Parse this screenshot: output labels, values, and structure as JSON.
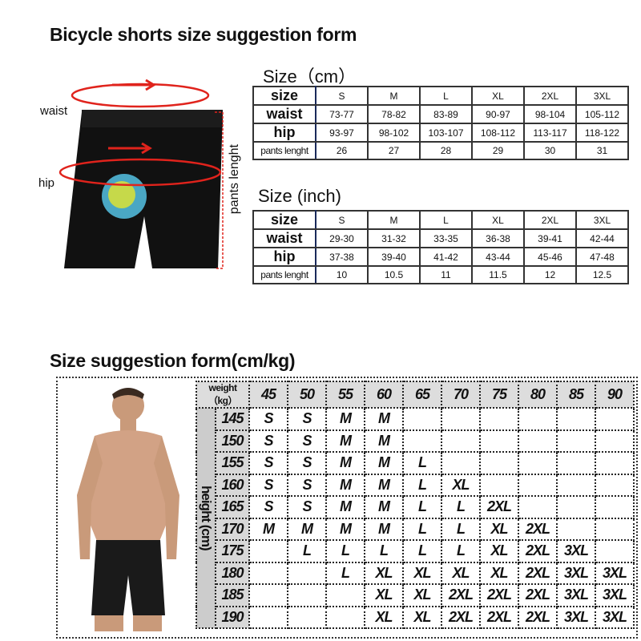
{
  "title": "Bicycle shorts size suggestion form",
  "diagram": {
    "waist_label": "waist",
    "hip_label": "hip",
    "length_label": "pants lenght"
  },
  "cm_table": {
    "heading": "Size（cm）",
    "columns": [
      "size",
      "S",
      "M",
      "L",
      "XL",
      "2XL",
      "3XL"
    ],
    "rows": [
      [
        "waist",
        "73-77",
        "78-82",
        "83-89",
        "90-97",
        "98-104",
        "105-112"
      ],
      [
        "hip",
        "93-97",
        "98-102",
        "103-107",
        "108-112",
        "113-117",
        "118-122"
      ],
      [
        "pants lenght",
        "26",
        "27",
        "28",
        "29",
        "30",
        "31"
      ]
    ]
  },
  "inch_table": {
    "heading": "Size  (inch)",
    "columns": [
      "size",
      "S",
      "M",
      "L",
      "XL",
      "2XL",
      "3XL"
    ],
    "rows": [
      [
        "waist",
        "29-30",
        "31-32",
        "33-35",
        "36-38",
        "39-41",
        "42-44"
      ],
      [
        "hip",
        "37-38",
        "39-40",
        "41-42",
        "43-44",
        "45-46",
        "47-48"
      ],
      [
        "pants lenght",
        "10",
        "10.5",
        "11",
        "11.5",
        "12",
        "12.5"
      ]
    ]
  },
  "suggestion": {
    "heading": "Size suggestion form(cm/kg)",
    "weight_label": "weight（kg）",
    "height_label": "height (cm)",
    "weights": [
      "45",
      "50",
      "55",
      "60",
      "65",
      "70",
      "75",
      "80",
      "85",
      "90"
    ],
    "rows": [
      {
        "height": "145",
        "sizes": [
          "S",
          "S",
          "M",
          "M",
          "",
          "",
          "",
          "",
          "",
          ""
        ]
      },
      {
        "height": "150",
        "sizes": [
          "S",
          "S",
          "M",
          "M",
          "",
          "",
          "",
          "",
          "",
          ""
        ]
      },
      {
        "height": "155",
        "sizes": [
          "S",
          "S",
          "M",
          "M",
          "L",
          "",
          "",
          "",
          "",
          ""
        ]
      },
      {
        "height": "160",
        "sizes": [
          "S",
          "S",
          "M",
          "M",
          "L",
          "XL",
          "",
          "",
          "",
          ""
        ]
      },
      {
        "height": "165",
        "sizes": [
          "S",
          "S",
          "M",
          "M",
          "L",
          "L",
          "2XL",
          "",
          "",
          ""
        ]
      },
      {
        "height": "170",
        "sizes": [
          "M",
          "M",
          "M",
          "M",
          "L",
          "L",
          "XL",
          "2XL",
          "",
          ""
        ]
      },
      {
        "height": "175",
        "sizes": [
          "",
          "L",
          "L",
          "L",
          "L",
          "L",
          "XL",
          "2XL",
          "3XL",
          ""
        ]
      },
      {
        "height": "180",
        "sizes": [
          "",
          "",
          "L",
          "XL",
          "XL",
          "XL",
          "XL",
          "2XL",
          "3XL",
          "3XL"
        ]
      },
      {
        "height": "185",
        "sizes": [
          "",
          "",
          "",
          "XL",
          "XL",
          "2XL",
          "2XL",
          "2XL",
          "3XL",
          "3XL"
        ]
      },
      {
        "height": "190",
        "sizes": [
          "",
          "",
          "",
          "XL",
          "XL",
          "2XL",
          "2XL",
          "2XL",
          "3XL",
          "3XL"
        ]
      }
    ]
  },
  "colors": {
    "measure_red": "#e0231c",
    "header_gray": "#dddddd"
  }
}
